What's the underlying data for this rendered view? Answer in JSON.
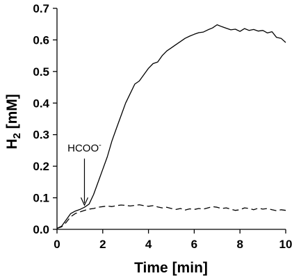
{
  "chart_data": {
    "type": "line",
    "title": "",
    "xlabel": "Time [min]",
    "ylabel": {
      "main": "H",
      "sub": "2",
      "unit": " [mM]"
    },
    "xlim": [
      0,
      10
    ],
    "ylim": [
      0,
      0.7
    ],
    "x_ticks": [
      0,
      2,
      4,
      6,
      8,
      10
    ],
    "y_ticks": [
      0.0,
      0.1,
      0.2,
      0.3,
      0.4,
      0.5,
      0.6,
      0.7
    ],
    "x_tick_labels": [
      "0",
      "2",
      "4",
      "6",
      "8",
      "10"
    ],
    "y_tick_labels": [
      "0.0",
      "0.1",
      "0.2",
      "0.3",
      "0.4",
      "0.5",
      "0.6",
      "0.7"
    ],
    "grid": false,
    "legend": "none",
    "series": [
      {
        "style": "solid",
        "color": "#000000",
        "x": [
          0,
          0.2,
          0.4,
          0.6,
          0.8,
          1.0,
          1.2,
          1.4,
          1.6,
          1.8,
          2.0,
          2.2,
          2.4,
          2.6,
          2.8,
          3.0,
          3.2,
          3.4,
          3.6,
          3.8,
          4.0,
          4.2,
          4.4,
          4.6,
          4.8,
          5.0,
          5.2,
          5.4,
          5.6,
          5.8,
          6.0,
          6.2,
          6.4,
          6.6,
          6.8,
          7.0,
          7.2,
          7.4,
          7.6,
          7.8,
          8.0,
          8.2,
          8.4,
          8.6,
          8.8,
          9.0,
          9.2,
          9.4,
          9.6,
          9.8,
          10.0
        ],
        "y": [
          0.003,
          0.01,
          0.03,
          0.05,
          0.058,
          0.063,
          0.07,
          0.08,
          0.11,
          0.15,
          0.19,
          0.23,
          0.28,
          0.32,
          0.36,
          0.4,
          0.43,
          0.46,
          0.47,
          0.49,
          0.51,
          0.525,
          0.53,
          0.55,
          0.565,
          0.575,
          0.585,
          0.595,
          0.605,
          0.612,
          0.618,
          0.623,
          0.625,
          0.632,
          0.638,
          0.648,
          0.642,
          0.637,
          0.632,
          0.634,
          0.627,
          0.636,
          0.63,
          0.633,
          0.628,
          0.63,
          0.622,
          0.626,
          0.608,
          0.605,
          0.592
        ]
      },
      {
        "style": "dashed",
        "color": "#000000",
        "x": [
          0,
          0.2,
          0.4,
          0.6,
          0.8,
          1.0,
          1.2,
          1.4,
          1.6,
          1.8,
          2.0,
          2.2,
          2.4,
          2.6,
          2.8,
          3.0,
          3.2,
          3.4,
          3.6,
          3.8,
          4.0,
          4.2,
          4.4,
          4.6,
          4.8,
          5.0,
          5.2,
          5.4,
          5.6,
          5.8,
          6.0,
          6.2,
          6.4,
          6.6,
          6.8,
          7.0,
          7.2,
          7.4,
          7.6,
          7.8,
          8.0,
          8.2,
          8.4,
          8.6,
          8.8,
          9.0,
          9.2,
          9.4,
          9.6,
          9.8,
          10.0
        ],
        "y": [
          0.003,
          0.008,
          0.022,
          0.04,
          0.05,
          0.055,
          0.06,
          0.064,
          0.066,
          0.07,
          0.072,
          0.074,
          0.072,
          0.075,
          0.077,
          0.076,
          0.074,
          0.076,
          0.078,
          0.075,
          0.073,
          0.075,
          0.071,
          0.068,
          0.07,
          0.066,
          0.063,
          0.066,
          0.061,
          0.065,
          0.063,
          0.066,
          0.064,
          0.068,
          0.072,
          0.07,
          0.066,
          0.068,
          0.064,
          0.06,
          0.062,
          0.068,
          0.066,
          0.062,
          0.067,
          0.064,
          0.066,
          0.062,
          0.059,
          0.062,
          0.06
        ]
      }
    ],
    "annotations": [
      {
        "label": "HCOO",
        "superscript": "-",
        "x": 1.2,
        "y": 0.07
      }
    ]
  }
}
